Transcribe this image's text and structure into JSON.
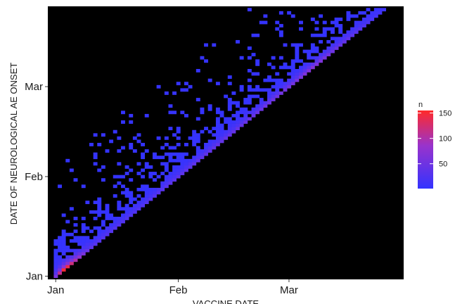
{
  "chart_data": {
    "type": "heatmap",
    "xlabel": "VACCINE DATE",
    "ylabel": "DATE OF NEUROLOGICAL AE ONSET",
    "x_ticks": [
      {
        "label": "Jan",
        "value": 0
      },
      {
        "label": "Feb",
        "value": 31
      },
      {
        "label": "Mar",
        "value": 59
      }
    ],
    "y_ticks": [
      {
        "label": "Jan",
        "value": 0
      },
      {
        "label": "Feb",
        "value": 31
      },
      {
        "label": "Mar",
        "value": 59
      }
    ],
    "xlim": [
      -2,
      88
    ],
    "ylim": [
      -1,
      84
    ],
    "grid": false,
    "panel_background": "#000000",
    "legend": {
      "title": "n",
      "position": "right",
      "ticks": [
        50,
        100,
        150
      ],
      "low_color": "#3333ff",
      "high_color": "#ff2a2a",
      "range": [
        1,
        155
      ]
    },
    "diagonal_peak_cells": [
      {
        "x": 0,
        "y": 0,
        "n": 60
      },
      {
        "x": 1,
        "y": 1,
        "n": 110
      },
      {
        "x": 2,
        "y": 2,
        "n": 150
      },
      {
        "x": 3,
        "y": 3,
        "n": 140
      },
      {
        "x": 4,
        "y": 4,
        "n": 120
      },
      {
        "x": 5,
        "y": 5,
        "n": 100
      },
      {
        "x": 6,
        "y": 6,
        "n": 80
      },
      {
        "x": 7,
        "y": 7,
        "n": 60
      },
      {
        "x": 8,
        "y": 8,
        "n": 45
      },
      {
        "x": 10,
        "y": 10,
        "n": 30
      },
      {
        "x": 20,
        "y": 20,
        "n": 25
      },
      {
        "x": 30,
        "y": 30,
        "n": 35
      },
      {
        "x": 40,
        "y": 40,
        "n": 40
      },
      {
        "x": 50,
        "y": 50,
        "n": 45
      },
      {
        "x": 60,
        "y": 60,
        "n": 55
      },
      {
        "x": 65,
        "y": 65,
        "n": 70
      },
      {
        "x": 70,
        "y": 70,
        "n": 50
      },
      {
        "x": 80,
        "y": 80,
        "n": 20
      },
      {
        "x": 83,
        "y": 83,
        "n": 10
      }
    ],
    "domain_x_max": 83
  }
}
